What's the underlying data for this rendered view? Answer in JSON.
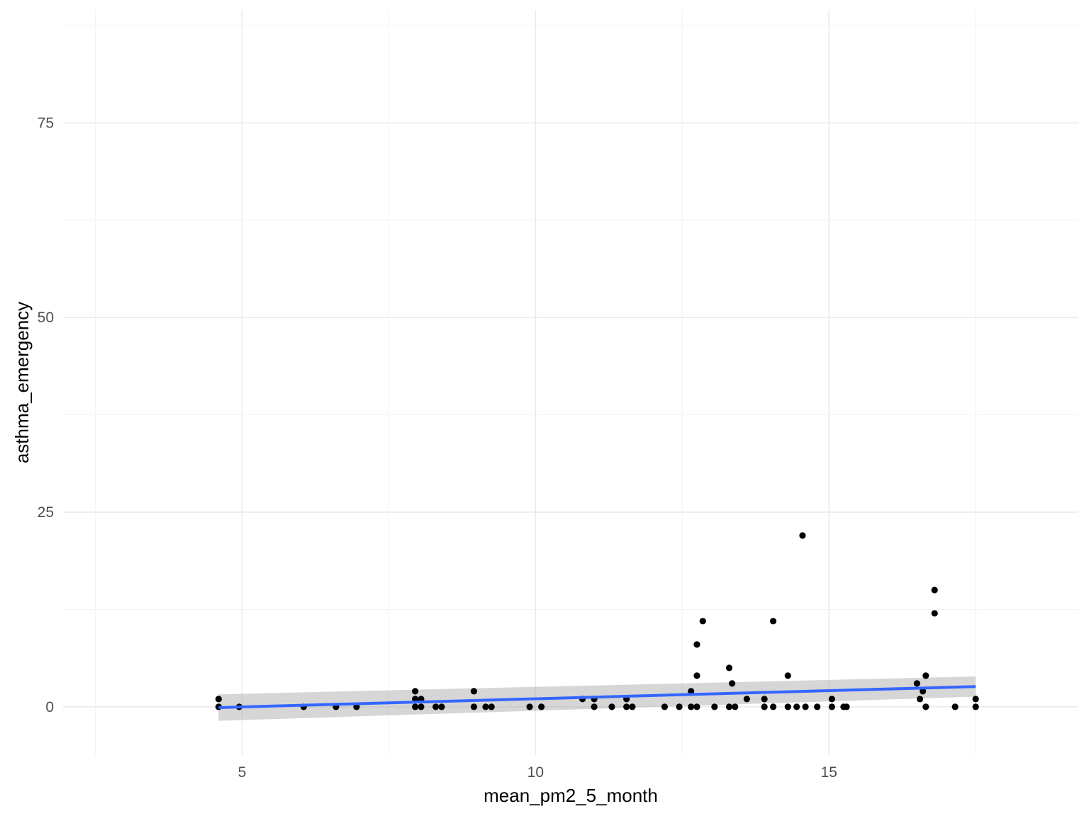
{
  "chart_data": {
    "type": "scatter",
    "xlabel": "mean_pm2_5_month",
    "ylabel": "asthma_emergency",
    "xlim": [
      1.95,
      19.25
    ],
    "ylim": [
      -6.2,
      89.5
    ],
    "x_ticks": [
      {
        "value": 5,
        "label": "5"
      },
      {
        "value": 10,
        "label": "10"
      },
      {
        "value": 15,
        "label": "15"
      }
    ],
    "x_minor": [
      2.5,
      7.5,
      12.5,
      17.5
    ],
    "y_ticks": [
      {
        "value": 0,
        "label": "0"
      },
      {
        "value": 25,
        "label": "25"
      },
      {
        "value": 50,
        "label": "50"
      },
      {
        "value": 75,
        "label": "75"
      }
    ],
    "y_minor": [
      12.5,
      37.5,
      62.5,
      87.5
    ],
    "grid": true,
    "legend": "none",
    "colors": {
      "points": "#000000",
      "trend": "#3366FF",
      "ribbon": "#999999"
    },
    "points": [
      [
        4.6,
        1
      ],
      [
        4.6,
        0
      ],
      [
        4.95,
        0
      ],
      [
        6.05,
        0
      ],
      [
        6.6,
        0
      ],
      [
        6.95,
        0
      ],
      [
        7.95,
        2
      ],
      [
        7.95,
        1
      ],
      [
        7.95,
        0
      ],
      [
        8.05,
        1
      ],
      [
        8.05,
        0
      ],
      [
        8.3,
        0
      ],
      [
        8.4,
        0
      ],
      [
        8.95,
        2
      ],
      [
        8.95,
        0
      ],
      [
        9.15,
        0
      ],
      [
        9.25,
        0
      ],
      [
        9.9,
        0
      ],
      [
        10.1,
        0
      ],
      [
        10.8,
        1
      ],
      [
        11.0,
        1
      ],
      [
        11.0,
        0
      ],
      [
        11.3,
        0
      ],
      [
        11.55,
        1
      ],
      [
        11.55,
        0
      ],
      [
        11.65,
        0
      ],
      [
        12.2,
        0
      ],
      [
        12.45,
        0
      ],
      [
        12.65,
        2
      ],
      [
        12.65,
        0
      ],
      [
        12.75,
        8
      ],
      [
        12.75,
        4
      ],
      [
        12.75,
        0
      ],
      [
        12.85,
        11
      ],
      [
        13.05,
        0
      ],
      [
        13.3,
        5
      ],
      [
        13.3,
        0
      ],
      [
        13.35,
        3
      ],
      [
        13.4,
        0
      ],
      [
        13.6,
        1
      ],
      [
        13.9,
        1
      ],
      [
        13.9,
        0
      ],
      [
        14.05,
        11
      ],
      [
        14.05,
        0
      ],
      [
        14.3,
        4
      ],
      [
        14.3,
        0
      ],
      [
        14.45,
        0
      ],
      [
        14.55,
        22
      ],
      [
        14.6,
        0
      ],
      [
        14.8,
        0
      ],
      [
        15.05,
        1
      ],
      [
        15.05,
        0
      ],
      [
        15.25,
        0
      ],
      [
        15.3,
        0
      ],
      [
        16.5,
        3
      ],
      [
        16.55,
        1
      ],
      [
        16.6,
        2
      ],
      [
        16.65,
        4
      ],
      [
        16.65,
        0
      ],
      [
        16.8,
        15
      ],
      [
        16.8,
        12
      ],
      [
        17.15,
        0
      ],
      [
        17.5,
        1
      ],
      [
        17.5,
        0
      ]
    ],
    "trend": {
      "x": [
        4.6,
        17.5
      ],
      "y": [
        -0.1,
        2.6
      ],
      "ribbon_lower": [
        -1.8,
        1.3
      ],
      "ribbon_upper": [
        1.6,
        3.9
      ]
    }
  }
}
